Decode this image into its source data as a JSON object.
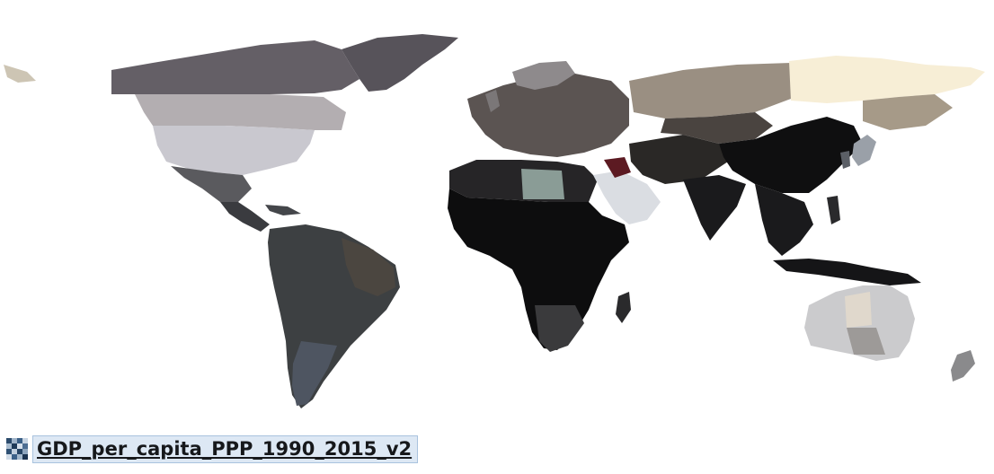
{
  "layer": {
    "name": "GDP_per_capita_PPP_1990_2015_v2",
    "icon": "raster-layer-icon"
  },
  "map": {
    "projection": "world-equirectangular",
    "background": "#ffffff",
    "regions": [
      {
        "name": "greenland",
        "color": "#57535a"
      },
      {
        "name": "canada-north",
        "color": "#645f66"
      },
      {
        "name": "canada-south",
        "color": "#b3aeb1"
      },
      {
        "name": "alaska",
        "color": "#cdc5b4"
      },
      {
        "name": "usa",
        "color": "#c9c8cf"
      },
      {
        "name": "mexico",
        "color": "#5a5a5e"
      },
      {
        "name": "central-america",
        "color": "#3a3b3f"
      },
      {
        "name": "south-america",
        "color": "#3d4042"
      },
      {
        "name": "south-america-south",
        "color": "#4e5561"
      },
      {
        "name": "north-africa",
        "color": "#262527"
      },
      {
        "name": "libya",
        "color": "#8a9c96"
      },
      {
        "name": "sub-saharan-africa",
        "color": "#0d0d0e"
      },
      {
        "name": "southern-africa",
        "color": "#3a3a3c"
      },
      {
        "name": "europe",
        "color": "#5b5452"
      },
      {
        "name": "arabian-peninsula",
        "color": "#dadde2"
      },
      {
        "name": "iraq",
        "color": "#5c1a22"
      },
      {
        "name": "russia-west",
        "color": "#9a8f82"
      },
      {
        "name": "russia-east",
        "color": "#f7eed6"
      },
      {
        "name": "china",
        "color": "#0f0f10"
      },
      {
        "name": "india",
        "color": "#1a1a1c"
      },
      {
        "name": "southeast-asia",
        "color": "#1a1a1c"
      },
      {
        "name": "japan",
        "color": "#9aa0a8"
      },
      {
        "name": "australia",
        "color": "#cbcbcd"
      },
      {
        "name": "australia-central",
        "color": "#e0d8cc"
      },
      {
        "name": "new-zealand",
        "color": "#8a8a8c"
      }
    ]
  }
}
